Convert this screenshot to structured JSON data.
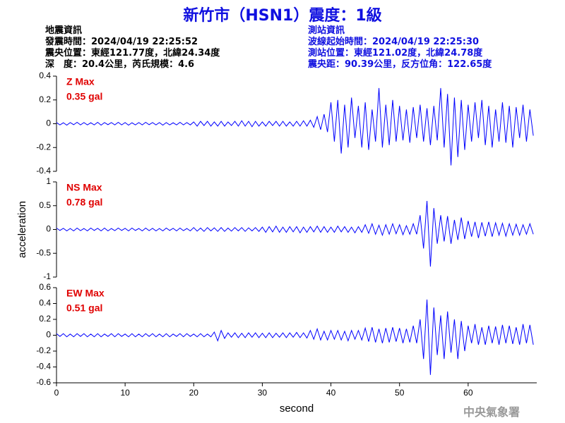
{
  "header": {
    "title": "新竹市（HSN1）震度：1級",
    "left": [
      "地震資訊",
      "發震時間：2024/04/19 22:25:52",
      "震央位置：東經121.77度，北緯24.34度",
      "深　度：20.4公里，芮氏規模：4.6"
    ],
    "right": [
      "測站資訊",
      "波線起始時間：2024/04/19 22:25:30",
      "測站位置：東經121.02度，北緯24.78度",
      "震央距：90.39公里，反方位角：122.65度"
    ],
    "footer": "中央氣象署"
  },
  "chart_data": [
    {
      "type": "line",
      "annotations": [
        "Z Max",
        "0.35 gal"
      ],
      "xlim": [
        0,
        70
      ],
      "ylim": [
        -0.4,
        0.4
      ],
      "yticks": [
        0.4,
        0.2,
        0,
        -0.2,
        -0.4
      ],
      "x": [
        0,
        0.5,
        1,
        1.5,
        2,
        2.5,
        3,
        3.5,
        4,
        4.5,
        5,
        5.5,
        6,
        6.5,
        7,
        7.5,
        8,
        8.5,
        9,
        9.5,
        10,
        10.5,
        11,
        11.5,
        12,
        12.5,
        13,
        13.5,
        14,
        14.5,
        15,
        15.5,
        16,
        16.5,
        17,
        17.5,
        18,
        18.5,
        19,
        19.5,
        20,
        20.5,
        21,
        21.5,
        22,
        22.5,
        23,
        23.5,
        24,
        24.5,
        25,
        25.5,
        26,
        26.5,
        27,
        27.5,
        28,
        28.5,
        29,
        29.5,
        30,
        30.5,
        31,
        31.5,
        32,
        32.5,
        33,
        33.5,
        34,
        34.5,
        35,
        35.5,
        36,
        36.5,
        37,
        37.5,
        38,
        38.5,
        39,
        39.5,
        40,
        40.5,
        41,
        41.5,
        42,
        42.5,
        43,
        43.5,
        44,
        44.5,
        45,
        45.5,
        46,
        46.5,
        47,
        47.5,
        48,
        48.5,
        49,
        49.5,
        50,
        50.5,
        51,
        51.5,
        52,
        52.5,
        53,
        53.5,
        54,
        54.5,
        55,
        55.5,
        56,
        56.5,
        57,
        57.5,
        58,
        58.5,
        59,
        59.5,
        60,
        60.5,
        61,
        61.5,
        62,
        62.5,
        63,
        63.5,
        64,
        64.5,
        65,
        65.5,
        66,
        66.5,
        67,
        67.5,
        68,
        68.5,
        69,
        69.5
      ],
      "series": [
        {
          "name": "Z",
          "color": "#0000ff",
          "values": [
            0.01,
            -0.01,
            0.008,
            -0.012,
            0.01,
            -0.008,
            0.012,
            -0.01,
            0.01,
            -0.01,
            0.008,
            -0.01,
            0.012,
            -0.012,
            0.01,
            -0.008,
            0.01,
            -0.01,
            0.012,
            -0.01,
            0.01,
            -0.012,
            0.008,
            -0.01,
            0.01,
            -0.01,
            0.012,
            -0.008,
            0.01,
            -0.01,
            0.01,
            -0.012,
            0.01,
            -0.01,
            0.008,
            -0.01,
            0.012,
            -0.01,
            0.01,
            -0.01,
            0.015,
            -0.02,
            0.02,
            -0.015,
            0.02,
            -0.02,
            0.015,
            -0.02,
            0.02,
            -0.02,
            0.015,
            -0.015,
            0.02,
            -0.02,
            0.025,
            -0.02,
            0.02,
            -0.025,
            0.02,
            -0.02,
            0.015,
            -0.02,
            0.02,
            -0.015,
            0.02,
            -0.02,
            0.02,
            -0.02,
            0.015,
            -0.02,
            0.02,
            -0.02,
            0.025,
            -0.02,
            0.03,
            -0.03,
            0.06,
            -0.05,
            0.08,
            -0.07,
            0.18,
            -0.15,
            0.2,
            -0.25,
            0.16,
            -0.2,
            0.22,
            -0.12,
            0.15,
            -0.2,
            0.18,
            -0.22,
            0.12,
            -0.15,
            0.3,
            -0.2,
            0.16,
            -0.18,
            0.2,
            -0.15,
            0.15,
            -0.14,
            0.12,
            -0.16,
            0.14,
            -0.12,
            0.16,
            -0.15,
            0.13,
            -0.18,
            0.15,
            -0.14,
            0.3,
            -0.2,
            0.25,
            -0.35,
            0.22,
            -0.28,
            0.2,
            -0.22,
            0.16,
            -0.15,
            0.18,
            -0.12,
            0.2,
            -0.18,
            0.15,
            -0.2,
            0.12,
            -0.15,
            0.18,
            -0.16,
            0.15,
            -0.2,
            0.14,
            -0.12,
            0.16,
            -0.15,
            0.12,
            -0.1
          ]
        }
      ]
    },
    {
      "type": "line",
      "annotations": [
        "NS Max",
        "0.78 gal"
      ],
      "ylabel": "acceleration",
      "xlim": [
        0,
        70
      ],
      "ylim": [
        -1,
        1
      ],
      "yticks": [
        1,
        0.5,
        0,
        -0.5,
        -1
      ],
      "x": [
        0,
        0.5,
        1,
        1.5,
        2,
        2.5,
        3,
        3.5,
        4,
        4.5,
        5,
        5.5,
        6,
        6.5,
        7,
        7.5,
        8,
        8.5,
        9,
        9.5,
        10,
        10.5,
        11,
        11.5,
        12,
        12.5,
        13,
        13.5,
        14,
        14.5,
        15,
        15.5,
        16,
        16.5,
        17,
        17.5,
        18,
        18.5,
        19,
        19.5,
        20,
        20.5,
        21,
        21.5,
        22,
        22.5,
        23,
        23.5,
        24,
        24.5,
        25,
        25.5,
        26,
        26.5,
        27,
        27.5,
        28,
        28.5,
        29,
        29.5,
        30,
        30.5,
        31,
        31.5,
        32,
        32.5,
        33,
        33.5,
        34,
        34.5,
        35,
        35.5,
        36,
        36.5,
        37,
        37.5,
        38,
        38.5,
        39,
        39.5,
        40,
        40.5,
        41,
        41.5,
        42,
        42.5,
        43,
        43.5,
        44,
        44.5,
        45,
        45.5,
        46,
        46.5,
        47,
        47.5,
        48,
        48.5,
        49,
        49.5,
        50,
        50.5,
        51,
        51.5,
        52,
        52.5,
        53,
        53.5,
        54,
        54.5,
        55,
        55.5,
        56,
        56.5,
        57,
        57.5,
        58,
        58.5,
        59,
        59.5,
        60,
        60.5,
        61,
        61.5,
        62,
        62.5,
        63,
        63.5,
        64,
        64.5,
        65,
        65.5,
        66,
        66.5,
        67,
        67.5,
        68,
        68.5,
        69,
        69.5
      ],
      "series": [
        {
          "name": "NS",
          "color": "#0000ff",
          "values": [
            0.03,
            -0.02,
            0.025,
            -0.03,
            0.02,
            -0.03,
            0.03,
            -0.025,
            0.02,
            -0.03,
            0.03,
            -0.02,
            0.025,
            -0.03,
            0.03,
            -0.03,
            0.02,
            -0.025,
            0.03,
            -0.02,
            0.025,
            -0.03,
            0.03,
            -0.02,
            0.02,
            -0.03,
            0.03,
            -0.025,
            0.025,
            -0.03,
            0.02,
            -0.03,
            0.03,
            -0.02,
            0.025,
            -0.03,
            0.03,
            -0.025,
            0.02,
            -0.03,
            0.04,
            -0.035,
            0.03,
            -0.04,
            0.04,
            -0.03,
            0.035,
            -0.04,
            0.04,
            -0.04,
            0.03,
            -0.035,
            0.04,
            -0.03,
            0.04,
            -0.04,
            0.035,
            -0.03,
            0.04,
            -0.04,
            0.05,
            -0.06,
            0.06,
            -0.05,
            0.07,
            -0.06,
            0.05,
            -0.06,
            0.06,
            -0.05,
            0.06,
            -0.07,
            0.05,
            -0.06,
            0.06,
            -0.05,
            0.07,
            -0.06,
            0.06,
            -0.06,
            0.05,
            -0.06,
            0.07,
            -0.05,
            0.06,
            -0.06,
            0.05,
            -0.07,
            0.06,
            -0.06,
            0.1,
            -0.08,
            0.12,
            -0.1,
            0.09,
            -0.12,
            0.1,
            -0.1,
            0.12,
            -0.09,
            0.1,
            -0.11,
            0.08,
            -0.1,
            0.12,
            -0.1,
            0.3,
            -0.4,
            0.6,
            -0.78,
            0.45,
            -0.3,
            0.3,
            -0.25,
            0.28,
            -0.3,
            0.2,
            -0.22,
            0.25,
            -0.2,
            0.18,
            -0.15,
            0.16,
            -0.18,
            0.15,
            -0.14,
            0.16,
            -0.15,
            0.14,
            -0.12,
            0.13,
            -0.14,
            0.12,
            -0.12,
            0.11,
            -0.12,
            0.1,
            -0.1,
            0.12,
            -0.1
          ]
        }
      ]
    },
    {
      "type": "line",
      "annotations": [
        "EW Max",
        "0.51 gal"
      ],
      "xlabel": "second",
      "xlim": [
        0,
        70
      ],
      "xticks": [
        0,
        10,
        20,
        30,
        40,
        50,
        60
      ],
      "ylim": [
        -0.6,
        0.6
      ],
      "yticks": [
        0.6,
        0.4,
        0.2,
        0,
        -0.2,
        -0.4,
        -0.6
      ],
      "x": [
        0,
        0.5,
        1,
        1.5,
        2,
        2.5,
        3,
        3.5,
        4,
        4.5,
        5,
        5.5,
        6,
        6.5,
        7,
        7.5,
        8,
        8.5,
        9,
        9.5,
        10,
        10.5,
        11,
        11.5,
        12,
        12.5,
        13,
        13.5,
        14,
        14.5,
        15,
        15.5,
        16,
        16.5,
        17,
        17.5,
        18,
        18.5,
        19,
        19.5,
        20,
        20.5,
        21,
        21.5,
        22,
        22.5,
        23,
        23.5,
        24,
        24.5,
        25,
        25.5,
        26,
        26.5,
        27,
        27.5,
        28,
        28.5,
        29,
        29.5,
        30,
        30.5,
        31,
        31.5,
        32,
        32.5,
        33,
        33.5,
        34,
        34.5,
        35,
        35.5,
        36,
        36.5,
        37,
        37.5,
        38,
        38.5,
        39,
        39.5,
        40,
        40.5,
        41,
        41.5,
        42,
        42.5,
        43,
        43.5,
        44,
        44.5,
        45,
        45.5,
        46,
        46.5,
        47,
        47.5,
        48,
        48.5,
        49,
        49.5,
        50,
        50.5,
        51,
        51.5,
        52,
        52.5,
        53,
        53.5,
        54,
        54.5,
        55,
        55.5,
        56,
        56.5,
        57,
        57.5,
        58,
        58.5,
        59,
        59.5,
        60,
        60.5,
        61,
        61.5,
        62,
        62.5,
        63,
        63.5,
        64,
        64.5,
        65,
        65.5,
        66,
        66.5,
        67,
        67.5,
        68,
        68.5,
        69,
        69.5
      ],
      "series": [
        {
          "name": "EW",
          "color": "#0000ff",
          "values": [
            0.02,
            -0.015,
            0.02,
            -0.02,
            0.015,
            -0.02,
            0.02,
            -0.015,
            0.02,
            -0.02,
            0.015,
            -0.02,
            0.02,
            -0.02,
            0.015,
            -0.015,
            0.02,
            -0.02,
            0.02,
            -0.015,
            0.015,
            -0.02,
            0.02,
            -0.02,
            0.015,
            -0.02,
            0.02,
            -0.015,
            0.02,
            -0.02,
            0.015,
            -0.02,
            0.02,
            -0.02,
            0.015,
            -0.015,
            0.02,
            -0.02,
            0.02,
            -0.015,
            0.015,
            -0.02,
            0.02,
            -0.02,
            0.015,
            -0.02,
            0.04,
            -0.07,
            0.06,
            -0.04,
            0.03,
            -0.025,
            0.03,
            -0.03,
            0.025,
            -0.03,
            0.03,
            -0.025,
            0.03,
            -0.03,
            0.025,
            -0.03,
            0.03,
            -0.03,
            0.025,
            -0.025,
            0.03,
            -0.03,
            0.03,
            -0.025,
            0.035,
            -0.03,
            0.03,
            -0.035,
            0.06,
            -0.05,
            0.08,
            -0.06,
            0.05,
            -0.06,
            0.06,
            -0.05,
            0.06,
            -0.06,
            0.05,
            -0.07,
            0.06,
            -0.05,
            0.06,
            -0.06,
            0.09,
            -0.08,
            0.1,
            -0.09,
            0.08,
            -0.1,
            0.09,
            -0.09,
            0.1,
            -0.08,
            0.09,
            -0.1,
            0.08,
            -0.09,
            0.12,
            -0.1,
            0.2,
            -0.3,
            0.45,
            -0.5,
            0.35,
            -0.25,
            0.25,
            -0.3,
            0.3,
            -0.22,
            0.2,
            -0.3,
            0.18,
            -0.2,
            0.12,
            -0.1,
            0.14,
            -0.12,
            0.1,
            -0.12,
            0.12,
            -0.1,
            0.11,
            -0.12,
            0.13,
            -0.1,
            0.12,
            -0.11,
            0.1,
            -0.12,
            0.14,
            -0.1,
            0.13,
            -0.12
          ]
        }
      ]
    }
  ]
}
